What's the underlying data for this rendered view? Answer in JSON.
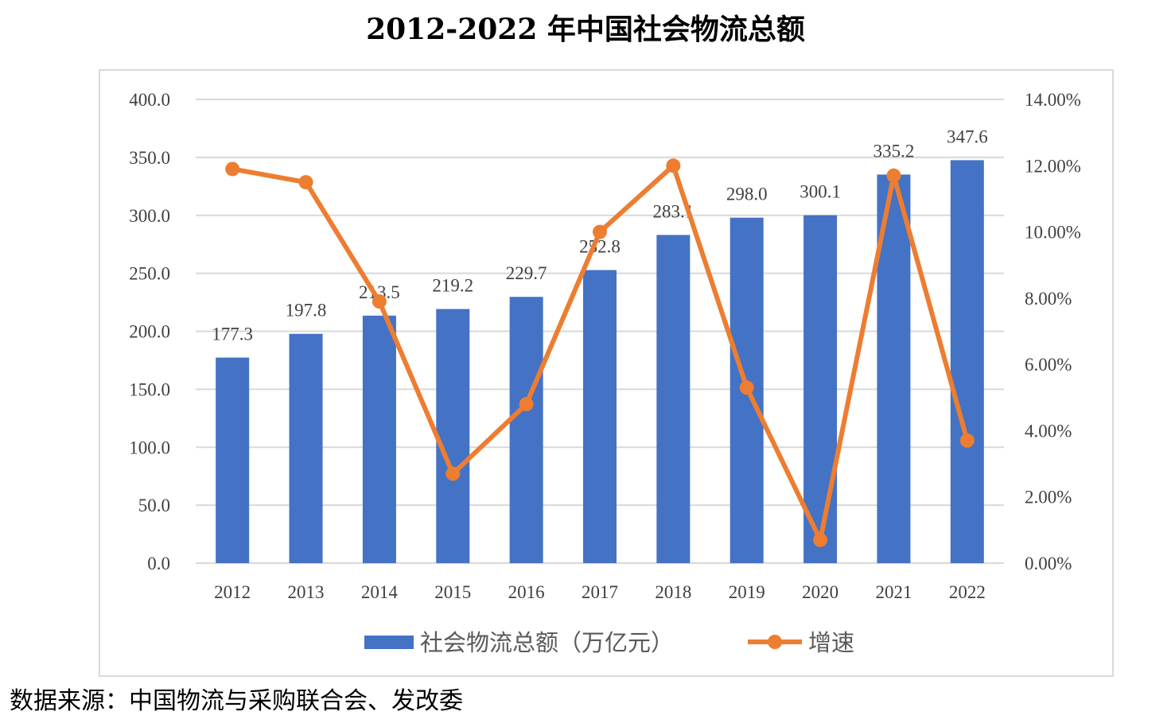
{
  "title": "2012-2022 年中国社会物流总额",
  "source_note": "数据来源：中国物流与采购联合会、发改委",
  "colors": {
    "bar": "#4472c4",
    "line": "#ed7d31",
    "grid": "#d9d9d9",
    "frame": "#d9d9d9",
    "text": "#404040"
  },
  "chart_data": {
    "type": "bar",
    "title": "2012-2022 年中国社会物流总额",
    "categories": [
      "2012",
      "2013",
      "2014",
      "2015",
      "2016",
      "2017",
      "2018",
      "2019",
      "2020",
      "2021",
      "2022"
    ],
    "series": [
      {
        "name": "社会物流总额（万亿元）",
        "type": "bar",
        "axis": "left",
        "values": [
          177.3,
          197.8,
          213.5,
          219.2,
          229.7,
          252.8,
          283.1,
          298.0,
          300.1,
          335.2,
          347.6
        ],
        "labels": [
          "177.3",
          "197.8",
          "213.5",
          "219.2",
          "229.7",
          "252.8",
          "283.1",
          "298.0",
          "300.1",
          "335.2",
          "347.6"
        ]
      },
      {
        "name": "增速",
        "type": "line",
        "axis": "right",
        "values": [
          11.9,
          11.5,
          7.9,
          2.7,
          4.8,
          10.0,
          12.0,
          5.3,
          0.7,
          11.7,
          3.7
        ]
      }
    ],
    "y_left": {
      "lim": [
        0,
        400
      ],
      "ticks": [
        "0.0",
        "50.0",
        "100.0",
        "150.0",
        "200.0",
        "250.0",
        "300.0",
        "350.0",
        "400.0"
      ]
    },
    "y_right": {
      "lim": [
        0,
        14
      ],
      "ticks": [
        "0.00%",
        "2.00%",
        "4.00%",
        "6.00%",
        "8.00%",
        "10.00%",
        "12.00%",
        "14.00%"
      ]
    },
    "grid": true,
    "legend_position": "bottom"
  }
}
